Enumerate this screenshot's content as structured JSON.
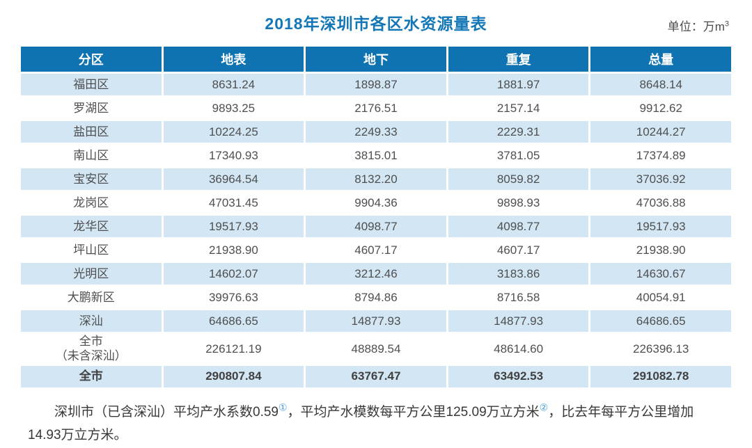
{
  "header": {
    "title": "2018年深圳市各区水资源量表",
    "unit_label": "单位：万m",
    "unit_superscript": "3"
  },
  "colors": {
    "header_blue": "#0e73b0",
    "title_blue": "#1377b7",
    "stripe_blue": "#d2e6f4",
    "footnote_marker_blue": "#3f9bd8"
  },
  "table": {
    "columns": [
      "分区",
      "地表",
      "地下",
      "重复",
      "总量"
    ],
    "rows": [
      {
        "name": "福田区",
        "values": [
          "8631.24",
          "1898.87",
          "1881.97",
          "8648.14"
        ]
      },
      {
        "name": "罗湖区",
        "values": [
          "9893.25",
          "2176.51",
          "2157.14",
          "9912.62"
        ]
      },
      {
        "name": "盐田区",
        "values": [
          "10224.25",
          "2249.33",
          "2229.31",
          "10244.27"
        ]
      },
      {
        "name": "南山区",
        "values": [
          "17340.93",
          "3815.01",
          "3781.05",
          "17374.89"
        ]
      },
      {
        "name": "宝安区",
        "values": [
          "36964.54",
          "8132.20",
          "8059.82",
          "37036.92"
        ]
      },
      {
        "name": "龙岗区",
        "values": [
          "47031.45",
          "9904.36",
          "9898.93",
          "47036.88"
        ]
      },
      {
        "name": "龙华区",
        "values": [
          "19517.93",
          "4098.77",
          "4098.77",
          "19517.93"
        ]
      },
      {
        "name": "坪山区",
        "values": [
          "21938.90",
          "4607.17",
          "4607.17",
          "21938.90"
        ]
      },
      {
        "name": "光明区",
        "values": [
          "14602.07",
          "3212.46",
          "3183.86",
          "14630.67"
        ]
      },
      {
        "name": "大鹏新区",
        "values": [
          "39976.63",
          "8794.86",
          "8716.58",
          "40054.91"
        ]
      },
      {
        "name": "深汕",
        "values": [
          "64686.65",
          "14877.93",
          "14877.93",
          "64686.65"
        ]
      },
      {
        "name": "全市",
        "name_line2": "（未含深汕）",
        "values": [
          "226121.19",
          "48889.54",
          "48614.60",
          "226396.13"
        ]
      },
      {
        "name": "全市",
        "bold": true,
        "values": [
          "290807.84",
          "63767.47",
          "63492.53",
          "291082.78"
        ]
      }
    ]
  },
  "footnote": {
    "seg1": "深圳市（已含深汕）平均产水系数0.59",
    "sup1": "①",
    "seg2": "，平均产水模数每平方公里125.09万立方米",
    "sup2": "②",
    "seg3": "，比去年每平方公里增加14.93万立方米。"
  },
  "chart_data": {
    "type": "table",
    "title": "2018年深圳市各区水资源量表",
    "unit": "万m³",
    "columns": [
      "分区",
      "地表",
      "地下",
      "重复",
      "总量"
    ],
    "rows": [
      [
        "福田区",
        8631.24,
        1898.87,
        1881.97,
        8648.14
      ],
      [
        "罗湖区",
        9893.25,
        2176.51,
        2157.14,
        9912.62
      ],
      [
        "盐田区",
        10224.25,
        2249.33,
        2229.31,
        10244.27
      ],
      [
        "南山区",
        17340.93,
        3815.01,
        3781.05,
        17374.89
      ],
      [
        "宝安区",
        36964.54,
        8132.2,
        8059.82,
        37036.92
      ],
      [
        "龙岗区",
        47031.45,
        9904.36,
        9898.93,
        47036.88
      ],
      [
        "龙华区",
        19517.93,
        4098.77,
        4098.77,
        19517.93
      ],
      [
        "坪山区",
        21938.9,
        4607.17,
        4607.17,
        21938.9
      ],
      [
        "光明区",
        14602.07,
        3212.46,
        3183.86,
        14630.67
      ],
      [
        "大鹏新区",
        39976.63,
        8794.86,
        8716.58,
        40054.91
      ],
      [
        "深汕",
        64686.65,
        14877.93,
        14877.93,
        64686.65
      ],
      [
        "全市（未含深汕）",
        226121.19,
        48889.54,
        48614.6,
        226396.13
      ],
      [
        "全市",
        290807.84,
        63767.47,
        63492.53,
        291082.78
      ]
    ],
    "footnote": "深圳市（已含深汕）平均产水系数0.59①，平均产水模数每平方公里125.09万立方米②，比去年每平方公里增加14.93万立方米。"
  }
}
